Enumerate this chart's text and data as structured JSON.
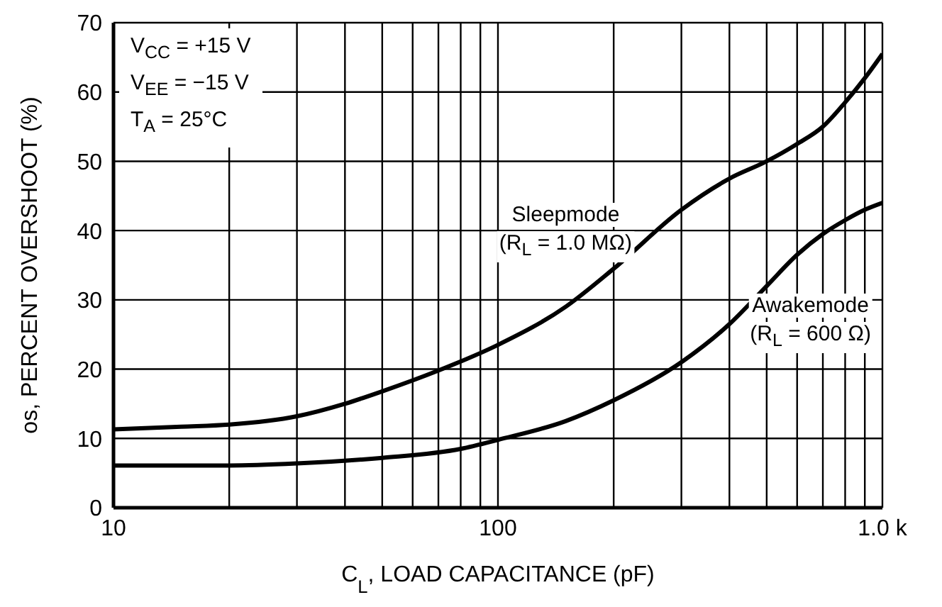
{
  "chart_data": {
    "type": "line",
    "xlabel": "C$_{L}$, LOAD CAPACITANCE (pF)",
    "ylabel": "os, PERCENT OVERSHOOT (%)",
    "log": "x",
    "grid": true,
    "legend": false,
    "marker": "none",
    "line_style": "solid",
    "xlim": [
      10,
      1000
    ],
    "xticks": [
      10,
      {
        "value": 20,
        "label": null
      },
      {
        "value": 30,
        "label": null
      },
      {
        "value": 40,
        "label": null
      },
      {
        "value": 50,
        "label": null
      },
      {
        "value": 60,
        "label": null
      },
      {
        "value": 70,
        "label": null
      },
      {
        "value": 80,
        "label": null
      },
      {
        "value": 90,
        "label": null
      },
      100,
      {
        "value": 200,
        "label": null
      },
      {
        "value": 300,
        "label": null
      },
      {
        "value": 400,
        "label": null
      },
      {
        "value": 500,
        "label": null
      },
      {
        "value": 600,
        "label": null
      },
      {
        "value": 700,
        "label": null
      },
      {
        "value": 800,
        "label": null
      },
      {
        "value": 900,
        "label": null
      },
      {
        "value": 1000,
        "label": "1.0 k"
      }
    ],
    "ylim": [
      0,
      70
    ],
    "yticks": [
      0,
      10,
      20,
      30,
      40,
      50,
      60,
      70
    ],
    "annotations": [
      "V$_{CC}$ = +15 V",
      "V$_{EE}$ = −15 V",
      "T$_{A}$ = 25°C",
      "(R$_{L}$ = 1.0 MΩ)",
      "(R$_{L}$ = 600 Ω)"
    ],
    "series": [
      {
        "name": "Sleepmode",
        "color": "#000000",
        "x": [
          10,
          15,
          20,
          30,
          40,
          50,
          70,
          100,
          150,
          200,
          300,
          400,
          500,
          600,
          700,
          800,
          900,
          1000
        ],
        "values": [
          11.3,
          11.7,
          12,
          13.2,
          15,
          16.8,
          19.8,
          23.5,
          29,
          34.5,
          43,
          47.5,
          50,
          52.5,
          55,
          58.5,
          62,
          65.5
        ]
      },
      {
        "name": "Awakemode",
        "color": "#000000",
        "x": [
          10,
          20,
          30,
          50,
          80,
          100,
          150,
          200,
          300,
          400,
          500,
          600,
          700,
          800,
          900,
          1000
        ],
        "values": [
          6.1,
          6.1,
          6.4,
          7.2,
          8.5,
          9.8,
          12.5,
          15.5,
          21,
          26.5,
          32,
          36.5,
          39.5,
          41.5,
          43,
          44
        ]
      }
    ]
  }
}
